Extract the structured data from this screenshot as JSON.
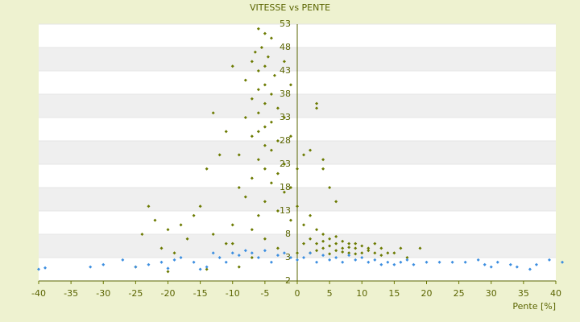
{
  "chart_data": {
    "type": "scatter",
    "title": "VITESSE vs PENTE",
    "x_label": "Pente [%]",
    "grid": true,
    "xlim": [
      -40,
      40
    ],
    "ylim": [
      -2,
      53
    ],
    "xticks": [
      -40,
      -35,
      -30,
      -25,
      -20,
      -15,
      -10,
      -5,
      0,
      5,
      10,
      15,
      20,
      25,
      30,
      35,
      40
    ],
    "yticks": [
      -2,
      3,
      8,
      13,
      18,
      23,
      28,
      33,
      38,
      43,
      48,
      53
    ],
    "series": [
      {
        "color": "#6b7a00",
        "x": [
          -6,
          -5,
          -4,
          -5.5,
          -6.5,
          -4.5,
          -7,
          -5,
          -6,
          -3.5,
          -8,
          -5,
          -6,
          -4,
          -7,
          -5,
          -3,
          -6,
          -8,
          -4,
          -5,
          -6,
          -7,
          -3,
          -5,
          -4,
          -9,
          -6,
          -2,
          -5,
          -3,
          -7,
          -4,
          -1,
          -2,
          -8,
          -5,
          0,
          -3,
          -6,
          -1,
          -10,
          -11,
          -13,
          -12,
          -14,
          -15,
          -16,
          -18,
          -20,
          -22,
          -23,
          -24,
          -21,
          -17,
          -19,
          -10,
          -9,
          -11,
          -7,
          -2,
          -1,
          -2,
          -1,
          0,
          1,
          2,
          3,
          3,
          4,
          4,
          5,
          6,
          2,
          1,
          3,
          4,
          5,
          6,
          7,
          8,
          9,
          10,
          11,
          12,
          13,
          14,
          15,
          16,
          17,
          19,
          3,
          4,
          5,
          6,
          7,
          8,
          9,
          10,
          11,
          12,
          13,
          2,
          1,
          0,
          2,
          3,
          4,
          5,
          6,
          7,
          8,
          9,
          -3,
          -5,
          -7,
          -9,
          -14,
          -20,
          -25,
          -13,
          -10
        ],
        "y": [
          52,
          51,
          50,
          48,
          47,
          46,
          45,
          44,
          43,
          42,
          41,
          40,
          39,
          38,
          37,
          36,
          35,
          34,
          33,
          32,
          31,
          30,
          29,
          28,
          27,
          26,
          25,
          24,
          23,
          22,
          21,
          20,
          19,
          18,
          17,
          16,
          15,
          14,
          13,
          12,
          11,
          44,
          30,
          34,
          25,
          22,
          14,
          12,
          10,
          9,
          11,
          14,
          8,
          5,
          7,
          4,
          10,
          18,
          6,
          9,
          45,
          40,
          33,
          29,
          22,
          25,
          26,
          36,
          35,
          24,
          22,
          18,
          15,
          12,
          10,
          9,
          8,
          7,
          6,
          5,
          6,
          5,
          4,
          5,
          4,
          5,
          4,
          4,
          5,
          3,
          5,
          6,
          5,
          5.5,
          4.5,
          6.5,
          4,
          6,
          5.5,
          4.5,
          6,
          3.5,
          7,
          6,
          4,
          4,
          4.5,
          6.5,
          3.8,
          7.5,
          4.2,
          5.2,
          3.8,
          5,
          7,
          3,
          1,
          0.5,
          0,
          1,
          8,
          6
        ]
      },
      {
        "color": "#3c8ee0",
        "x": [
          -40,
          -39,
          -32,
          -30,
          -27,
          -25,
          -23,
          -21,
          -20,
          -19,
          -18,
          -16,
          -15,
          -14,
          -13,
          -12,
          -11,
          -10,
          -9,
          -8,
          -7,
          -6,
          -5,
          -4,
          -3,
          -2,
          -1,
          0,
          1,
          2,
          3,
          4,
          5,
          6,
          7,
          8,
          9,
          10,
          11,
          12,
          13,
          14,
          15,
          16,
          17,
          18,
          20,
          22,
          24,
          26,
          28,
          29,
          30,
          31,
          33,
          34,
          36,
          37,
          39,
          41
        ],
        "y": [
          0.5,
          0.8,
          1,
          1.5,
          2.5,
          1,
          1.5,
          2,
          0.7,
          2.5,
          3,
          2,
          0.5,
          1,
          4,
          3,
          2,
          4,
          3.5,
          4.5,
          4,
          3,
          4.5,
          2,
          3.5,
          4,
          3,
          2.5,
          3,
          4,
          2,
          3.5,
          2.5,
          3,
          2,
          3.5,
          2.5,
          3,
          2,
          2.5,
          1.5,
          2,
          1.5,
          2,
          2.5,
          1.5,
          2,
          2,
          2,
          2,
          2.5,
          1.5,
          1,
          2,
          1.5,
          1,
          0.5,
          1.5,
          2.5,
          2
        ]
      }
    ]
  }
}
